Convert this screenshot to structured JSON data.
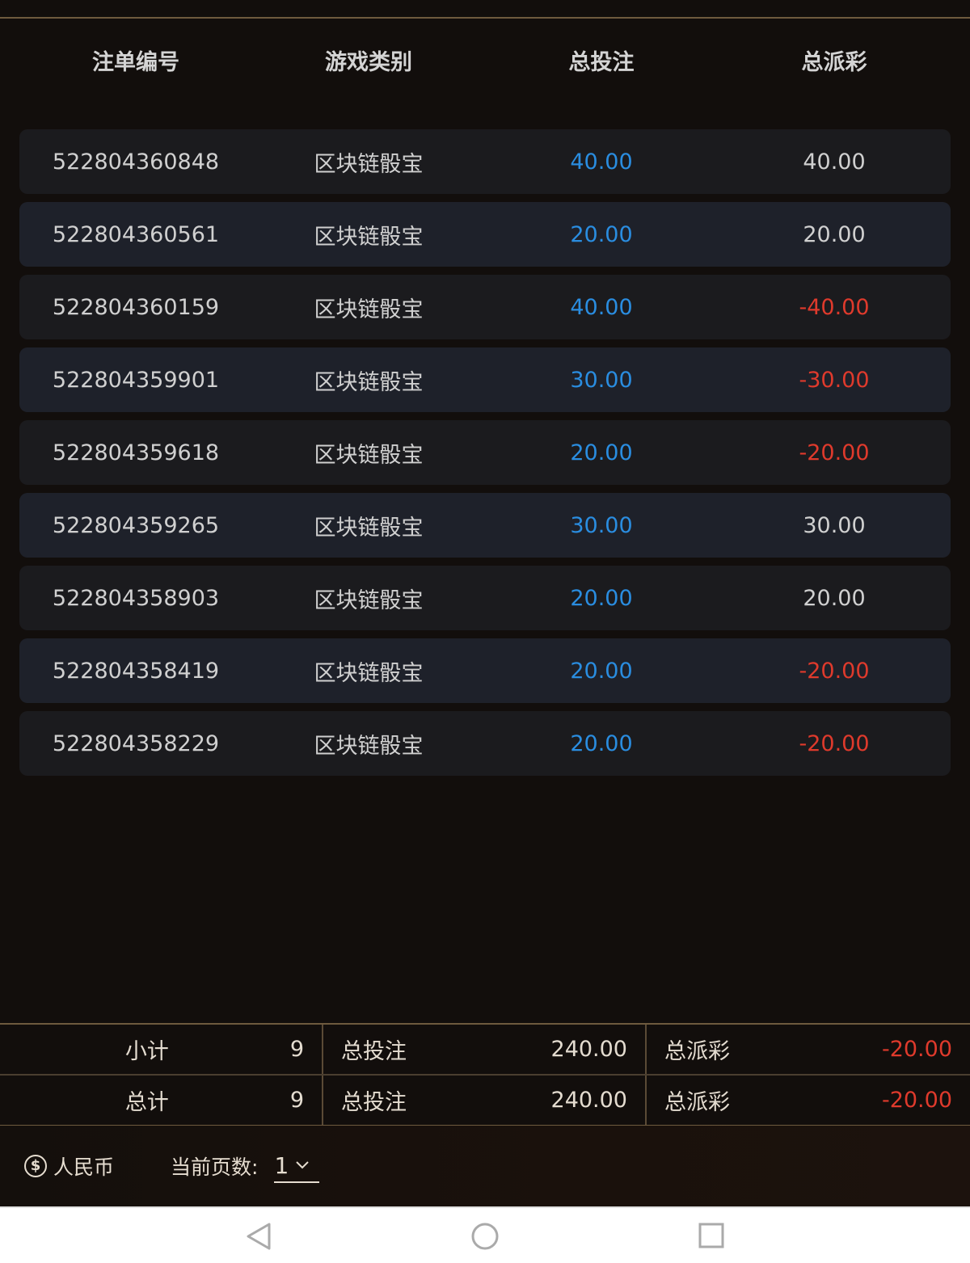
{
  "colors": {
    "bet": "#2a8de0",
    "negative": "#df3a2c",
    "accent_line": "#6e5a3e"
  },
  "table": {
    "headers": [
      "注单编号",
      "游戏类别",
      "总投注",
      "总派彩"
    ],
    "rows": [
      {
        "id": "522804360848",
        "game": "区块链骰宝",
        "bet": "40.00",
        "payout": "40.00"
      },
      {
        "id": "522804360561",
        "game": "区块链骰宝",
        "bet": "20.00",
        "payout": "20.00"
      },
      {
        "id": "522804360159",
        "game": "区块链骰宝",
        "bet": "40.00",
        "payout": "-40.00"
      },
      {
        "id": "522804359901",
        "game": "区块链骰宝",
        "bet": "30.00",
        "payout": "-30.00"
      },
      {
        "id": "522804359618",
        "game": "区块链骰宝",
        "bet": "20.00",
        "payout": "-20.00"
      },
      {
        "id": "522804359265",
        "game": "区块链骰宝",
        "bet": "30.00",
        "payout": "30.00"
      },
      {
        "id": "522804358903",
        "game": "区块链骰宝",
        "bet": "20.00",
        "payout": "20.00"
      },
      {
        "id": "522804358419",
        "game": "区块链骰宝",
        "bet": "20.00",
        "payout": "-20.00"
      },
      {
        "id": "522804358229",
        "game": "区块链骰宝",
        "bet": "20.00",
        "payout": "-20.00"
      }
    ]
  },
  "summary": {
    "subtotal": {
      "label": "小计",
      "count": "9",
      "bet_label": "总投注",
      "bet": "240.00",
      "payout_label": "总派彩",
      "payout": "-20.00"
    },
    "total": {
      "label": "总计",
      "count": "9",
      "bet_label": "总投注",
      "bet": "240.00",
      "payout_label": "总派彩",
      "payout": "-20.00"
    }
  },
  "footer": {
    "currency_icon": "dollar-coin-icon",
    "currency_glyph": "$",
    "currency": "人民币",
    "page_label": "当前页数:",
    "page": "1"
  },
  "nav": {
    "icons": [
      "back-icon",
      "home-icon",
      "recents-icon"
    ]
  }
}
